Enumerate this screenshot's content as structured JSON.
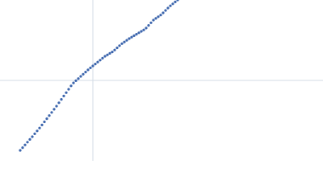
{
  "chart_data": {
    "type": "scatter",
    "x": [
      25,
      28,
      31,
      34,
      37,
      40,
      43,
      46,
      49,
      52,
      55,
      58,
      61,
      64,
      67,
      70,
      73,
      76,
      79,
      82,
      85,
      88,
      91,
      94,
      97,
      100,
      103,
      106,
      109,
      112,
      115,
      118,
      121,
      124,
      127,
      130,
      133,
      136,
      139,
      142,
      145,
      148,
      151,
      154,
      157,
      160,
      163,
      166,
      169,
      172,
      175,
      178,
      181,
      184,
      187,
      190,
      193,
      196,
      199,
      202,
      205,
      208,
      211,
      214,
      217,
      220
    ],
    "series": [
      {
        "color": "#3d66ad",
        "values": [
          13,
          16.4,
          19.8,
          23.2,
          26.6,
          30,
          33.6,
          37.2,
          40.8,
          44.6,
          48.5,
          52.4,
          56.3,
          60.2,
          64.1,
          68,
          72.2,
          76.4,
          80.6,
          84.8,
          89,
          93.2,
          96.9,
          99.6,
          102.3,
          105,
          107.7,
          110.4,
          113.1,
          115.6,
          118,
          120.4,
          122.8,
          125.2,
          127.6,
          130,
          131.8,
          133.6,
          135.4,
          137.8,
          140.5,
          143.2,
          145.7,
          147.8,
          149.9,
          152,
          153.8,
          155.6,
          157.4,
          159.2,
          161,
          162.8,
          165.1,
          168.4,
          171.7,
          175,
          177.1,
          179.2,
          181.3,
          184,
          187,
          190,
          192.8,
          195.2,
          197.6,
          200
        ]
      }
    ],
    "xlim": [
      0,
      400
    ],
    "ylim": [
      0,
      200
    ],
    "xticks": [
      115
    ],
    "yticks": [
      100
    ],
    "grid": true,
    "grid_color": "#d3dbe6"
  }
}
